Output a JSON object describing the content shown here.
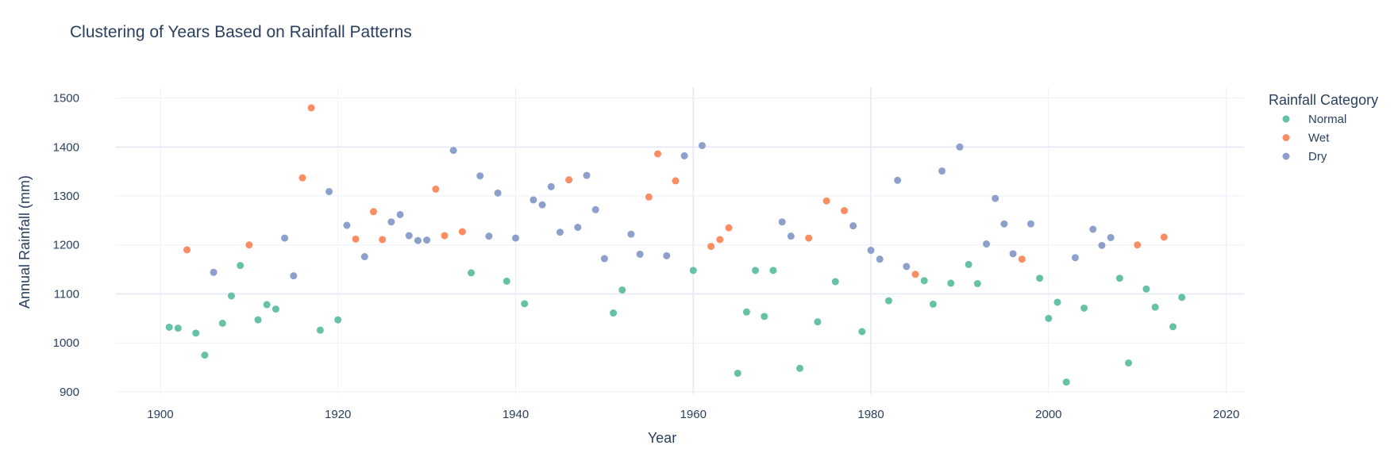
{
  "chart_data": {
    "type": "scatter",
    "title": "Clustering of Years Based on Rainfall Patterns",
    "xlabel": "Year",
    "ylabel": "Annual Rainfall (mm)",
    "xlim": [
      1895,
      2022
    ],
    "ylim": [
      895,
      1522
    ],
    "x_ticks": [
      1900,
      1920,
      1940,
      1960,
      1980,
      2000,
      2020
    ],
    "y_ticks": [
      900,
      1000,
      1100,
      1200,
      1300,
      1400,
      1500
    ],
    "grid": true,
    "legend": {
      "title": "Rainfall Category",
      "position": "top-right"
    },
    "series": [
      {
        "name": "Normal",
        "color": "#66c2a5",
        "points": [
          [
            1901,
            1032
          ],
          [
            1902,
            1030
          ],
          [
            1904,
            1020
          ],
          [
            1905,
            975
          ],
          [
            1907,
            1040
          ],
          [
            1908,
            1096
          ],
          [
            1909,
            1158
          ],
          [
            1911,
            1047
          ],
          [
            1912,
            1078
          ],
          [
            1913,
            1069
          ],
          [
            1918,
            1026
          ],
          [
            1920,
            1047
          ],
          [
            1935,
            1143
          ],
          [
            1939,
            1126
          ],
          [
            1941,
            1080
          ],
          [
            1951,
            1061
          ],
          [
            1952,
            1108
          ],
          [
            1960,
            1148
          ],
          [
            1965,
            938
          ],
          [
            1966,
            1063
          ],
          [
            1967,
            1148
          ],
          [
            1968,
            1054
          ],
          [
            1969,
            1148
          ],
          [
            1972,
            948
          ],
          [
            1974,
            1043
          ],
          [
            1976,
            1125
          ],
          [
            1979,
            1023
          ],
          [
            1982,
            1086
          ],
          [
            1986,
            1127
          ],
          [
            1987,
            1079
          ],
          [
            1989,
            1122
          ],
          [
            1991,
            1160
          ],
          [
            1992,
            1121
          ],
          [
            1999,
            1132
          ],
          [
            2000,
            1050
          ],
          [
            2001,
            1083
          ],
          [
            2002,
            920
          ],
          [
            2004,
            1071
          ],
          [
            2008,
            1132
          ],
          [
            2009,
            959
          ],
          [
            2011,
            1110
          ],
          [
            2012,
            1073
          ],
          [
            2014,
            1033
          ],
          [
            2015,
            1093
          ]
        ]
      },
      {
        "name": "Wet",
        "color": "#fc8d62",
        "points": [
          [
            1903,
            1190
          ],
          [
            1910,
            1200
          ],
          [
            1916,
            1337
          ],
          [
            1917,
            1480
          ],
          [
            1922,
            1212
          ],
          [
            1924,
            1268
          ],
          [
            1925,
            1211
          ],
          [
            1931,
            1314
          ],
          [
            1932,
            1219
          ],
          [
            1934,
            1227
          ],
          [
            1946,
            1333
          ],
          [
            1955,
            1298
          ],
          [
            1956,
            1386
          ],
          [
            1958,
            1331
          ],
          [
            1962,
            1197
          ],
          [
            1963,
            1211
          ],
          [
            1964,
            1235
          ],
          [
            1973,
            1214
          ],
          [
            1975,
            1290
          ],
          [
            1977,
            1270
          ],
          [
            1985,
            1140
          ],
          [
            1997,
            1171
          ],
          [
            2010,
            1200
          ],
          [
            2013,
            1216
          ]
        ]
      },
      {
        "name": "Dry",
        "color": "#8da0cb",
        "points": [
          [
            1906,
            1144
          ],
          [
            1914,
            1214
          ],
          [
            1915,
            1137
          ],
          [
            1919,
            1309
          ],
          [
            1921,
            1240
          ],
          [
            1923,
            1176
          ],
          [
            1926,
            1247
          ],
          [
            1927,
            1262
          ],
          [
            1928,
            1219
          ],
          [
            1929,
            1209
          ],
          [
            1930,
            1210
          ],
          [
            1933,
            1393
          ],
          [
            1936,
            1341
          ],
          [
            1937,
            1218
          ],
          [
            1938,
            1306
          ],
          [
            1940,
            1214
          ],
          [
            1942,
            1292
          ],
          [
            1943,
            1282
          ],
          [
            1944,
            1319
          ],
          [
            1945,
            1226
          ],
          [
            1947,
            1236
          ],
          [
            1948,
            1342
          ],
          [
            1949,
            1272
          ],
          [
            1950,
            1172
          ],
          [
            1953,
            1222
          ],
          [
            1954,
            1181
          ],
          [
            1957,
            1178
          ],
          [
            1959,
            1382
          ],
          [
            1961,
            1403
          ],
          [
            1970,
            1247
          ],
          [
            1971,
            1218
          ],
          [
            1978,
            1239
          ],
          [
            1980,
            1189
          ],
          [
            1981,
            1171
          ],
          [
            1983,
            1332
          ],
          [
            1984,
            1156
          ],
          [
            1988,
            1351
          ],
          [
            1990,
            1400
          ],
          [
            1993,
            1202
          ],
          [
            1994,
            1295
          ],
          [
            1995,
            1243
          ],
          [
            1996,
            1182
          ],
          [
            1998,
            1243
          ],
          [
            2003,
            1174
          ],
          [
            2005,
            1232
          ],
          [
            2006,
            1199
          ],
          [
            2007,
            1215
          ]
        ]
      }
    ]
  }
}
